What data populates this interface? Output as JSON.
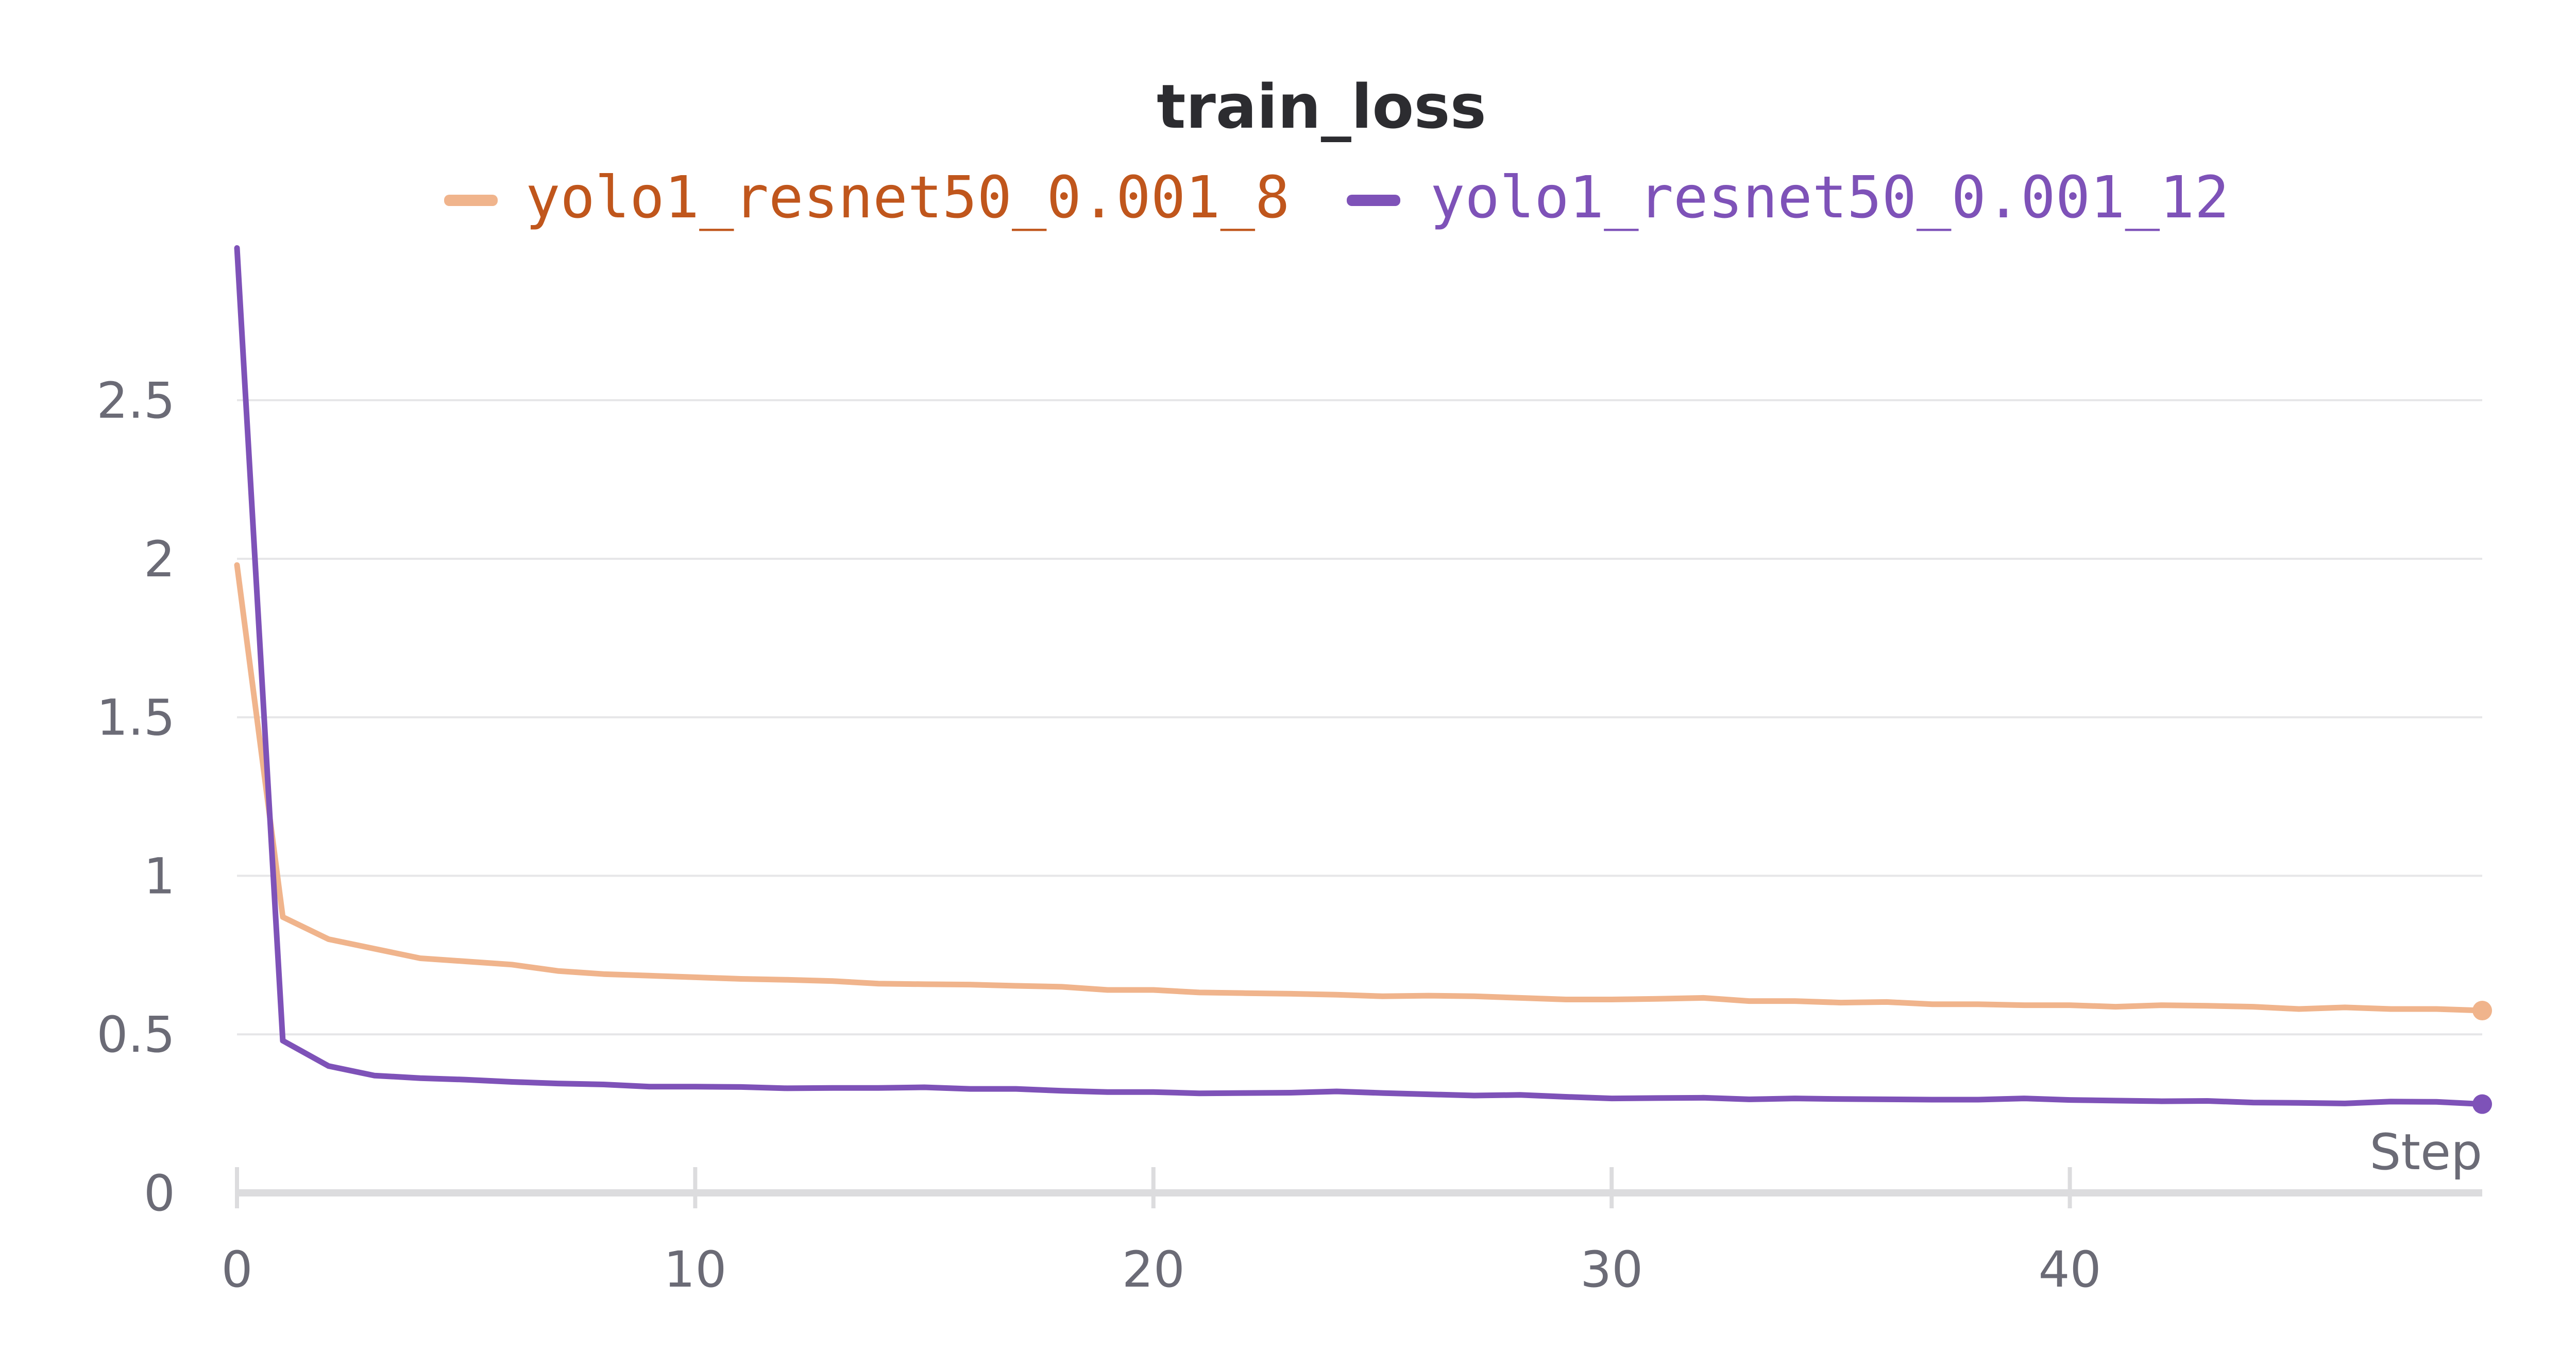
{
  "chart_data": {
    "type": "line",
    "title": "train_loss",
    "xlabel": "Step",
    "ylabel": "",
    "xlim": [
      0,
      49
    ],
    "ylim": [
      0,
      2.95
    ],
    "x_ticks": [
      0,
      10,
      20,
      30,
      40
    ],
    "x_tick_labels": [
      "0",
      "10",
      "20",
      "30",
      "40"
    ],
    "y_ticks": [
      0,
      0.5,
      1,
      1.5,
      2,
      2.5
    ],
    "y_tick_labels": [
      "0",
      "0.5",
      "1",
      "1.5",
      "2",
      "2.5"
    ],
    "grid": true,
    "legend_position": "top-center",
    "x": [
      0,
      1,
      2,
      3,
      4,
      5,
      6,
      7,
      8,
      9,
      10,
      11,
      12,
      13,
      14,
      15,
      16,
      17,
      18,
      19,
      20,
      21,
      22,
      23,
      24,
      25,
      26,
      27,
      28,
      29,
      30,
      31,
      32,
      33,
      34,
      35,
      36,
      37,
      38,
      39,
      40,
      41,
      42,
      43,
      44,
      45,
      46,
      47,
      48,
      49
    ],
    "series": [
      {
        "name": "yolo1_resnet50_0.001_8",
        "color": "#f0b48c",
        "text_color": "#c0561c",
        "values": [
          1.98,
          0.87,
          0.8,
          0.77,
          0.74,
          0.73,
          0.72,
          0.7,
          0.69,
          0.685,
          0.68,
          0.675,
          0.672,
          0.668,
          0.66,
          0.658,
          0.657,
          0.653,
          0.65,
          0.64,
          0.64,
          0.632,
          0.63,
          0.628,
          0.625,
          0.62,
          0.622,
          0.62,
          0.615,
          0.61,
          0.61,
          0.612,
          0.615,
          0.605,
          0.605,
          0.6,
          0.602,
          0.595,
          0.595,
          0.592,
          0.592,
          0.587,
          0.592,
          0.59,
          0.587,
          0.58,
          0.585,
          0.58,
          0.58,
          0.575
        ]
      },
      {
        "name": "yolo1_resnet50_0.001_12",
        "color": "#7e52b8",
        "text_color": "#7e52b8",
        "values": [
          2.98,
          0.48,
          0.4,
          0.37,
          0.362,
          0.357,
          0.35,
          0.345,
          0.342,
          0.335,
          0.335,
          0.334,
          0.33,
          0.331,
          0.331,
          0.333,
          0.328,
          0.328,
          0.322,
          0.318,
          0.318,
          0.314,
          0.315,
          0.316,
          0.32,
          0.315,
          0.311,
          0.307,
          0.309,
          0.303,
          0.298,
          0.299,
          0.3,
          0.295,
          0.298,
          0.296,
          0.295,
          0.294,
          0.294,
          0.298,
          0.293,
          0.291,
          0.289,
          0.29,
          0.285,
          0.284,
          0.282,
          0.288,
          0.287,
          0.28
        ]
      }
    ]
  }
}
